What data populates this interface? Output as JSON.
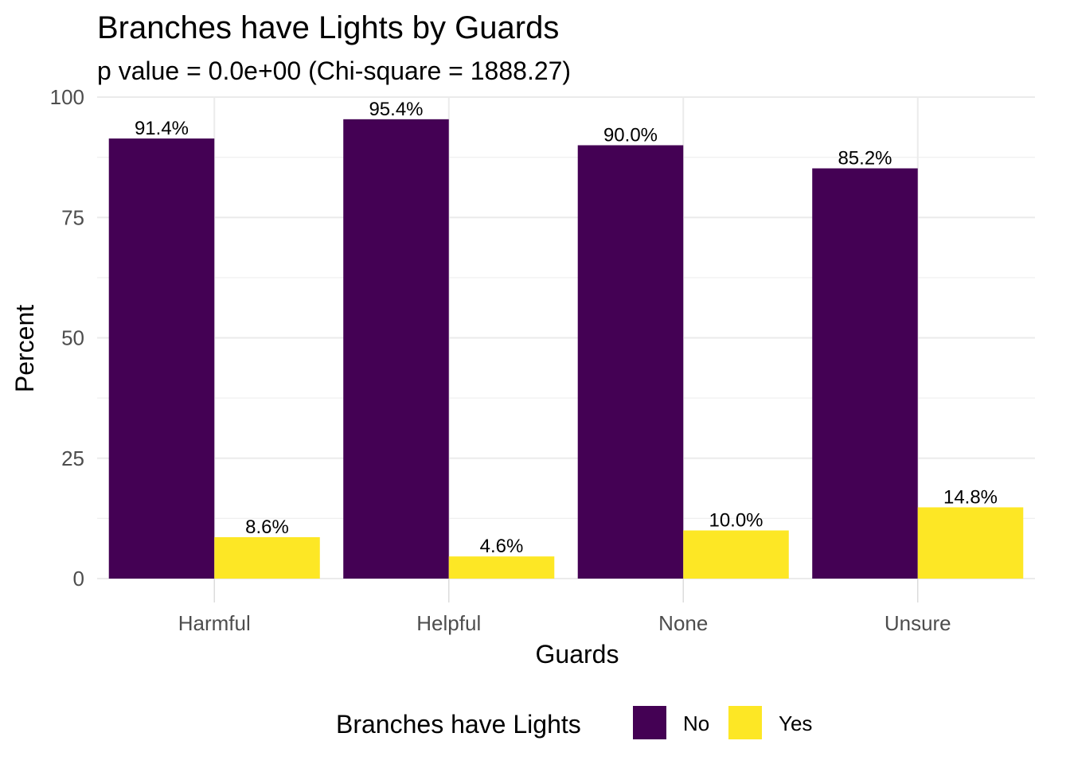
{
  "chart_data": {
    "type": "bar",
    "title": "Branches have Lights by Guards",
    "subtitle": "p value = 0.0e+00 (Chi-square = 1888.27)",
    "xlabel": "Guards",
    "ylabel": "Percent",
    "categories": [
      "Harmful",
      "Helpful",
      "None",
      "Unsure"
    ],
    "series": [
      {
        "name": "No",
        "values": [
          91.4,
          95.4,
          90.0,
          85.2
        ],
        "labels": [
          "91.4%",
          "95.4%",
          "90.0%",
          "85.2%"
        ],
        "color": "#440154"
      },
      {
        "name": "Yes",
        "values": [
          8.6,
          4.6,
          10.0,
          14.8
        ],
        "labels": [
          "8.6%",
          "4.6%",
          "10.0%",
          "14.8%"
        ],
        "color": "#FDE725"
      }
    ],
    "ylim": [
      0,
      100
    ],
    "yticks": [
      0,
      25,
      50,
      75,
      100
    ],
    "ytick_labels": [
      "0",
      "25",
      "50",
      "75",
      "100"
    ],
    "grid": true,
    "legend": {
      "title": "Branches have Lights",
      "position": "bottom"
    }
  }
}
